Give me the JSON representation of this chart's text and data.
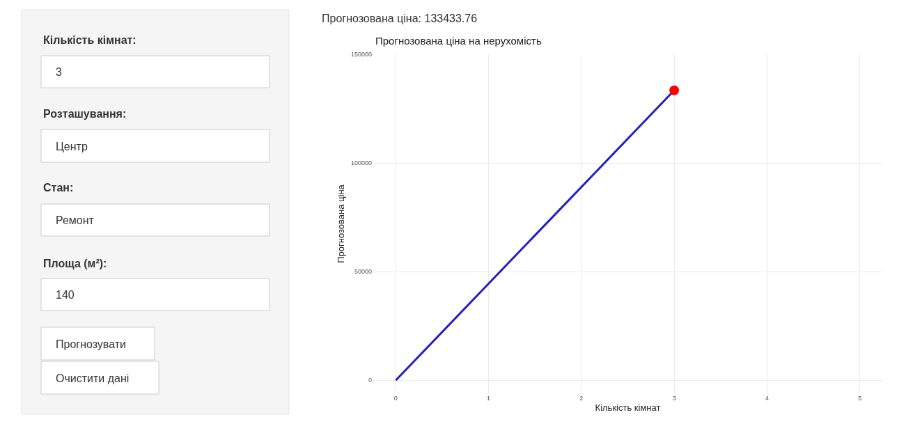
{
  "chart_data": {
    "type": "line",
    "title": "Прогнозована ціна на нерухомість",
    "xlabel": "Кількість кімнат",
    "ylabel": "Прогнозована ціна",
    "xlim": [
      -0.25,
      5.25
    ],
    "xticks": [
      0,
      1,
      2,
      3,
      4,
      5
    ],
    "ylim": [
      -6000,
      150000
    ],
    "yticks": [
      0,
      50000,
      100000,
      150000
    ],
    "grid": true,
    "x": [
      0,
      3
    ],
    "series": [
      {
        "values": [
          0,
          133400
        ],
        "color": "#1f1fc8",
        "marker": "none"
      },
      {
        "type": "scatter",
        "x": [
          3
        ],
        "values": [
          133400
        ],
        "color": "#ff0000",
        "marker": "circle"
      }
    ],
    "annotations": [
      "Прогнозована ціна: 133433.76",
      "Кількість кімнат:",
      "3",
      "Розташування:",
      "Центр",
      "Стан:",
      "Ремонт",
      "Площа (м²):",
      "140",
      "Прогнозувати",
      "Очистити дані"
    ]
  }
}
